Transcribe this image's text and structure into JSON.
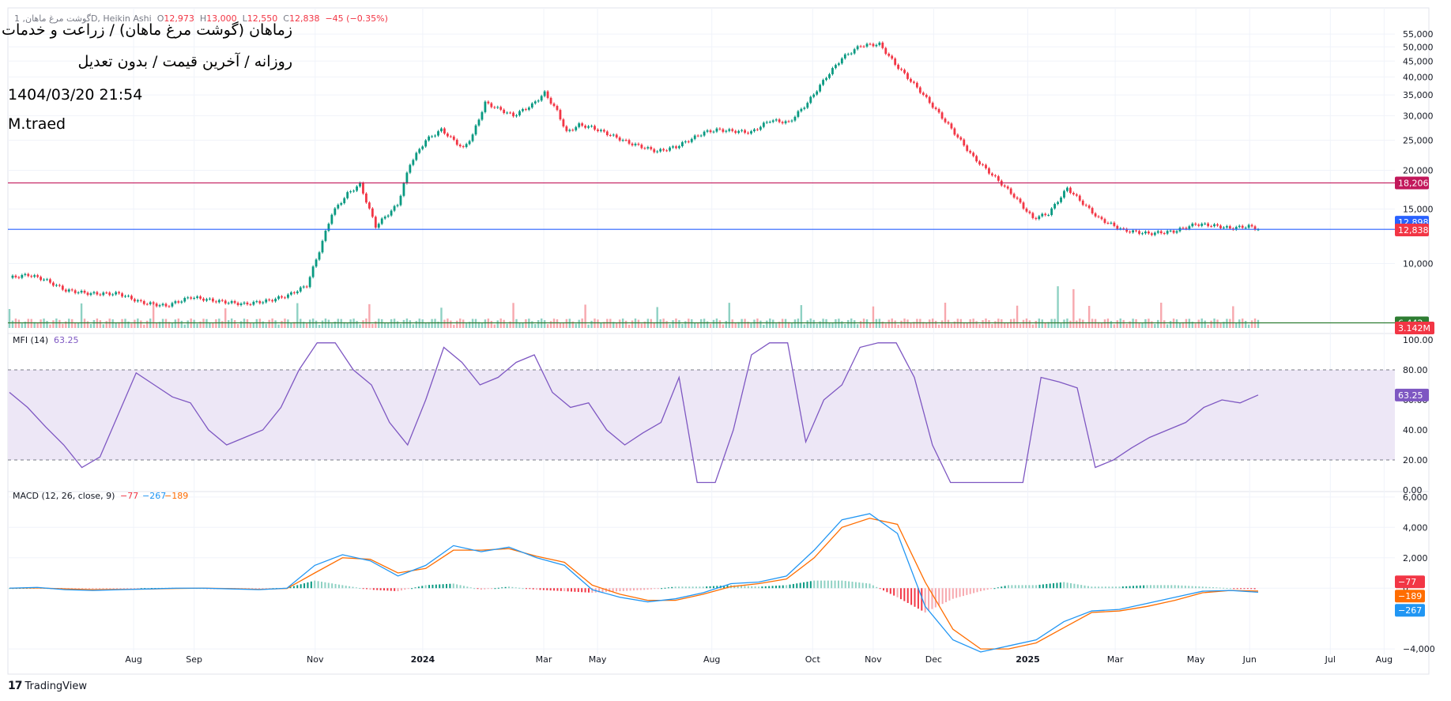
{
  "header": {
    "ohlc_prefix": "گوشت مرغ ماهان, 1D, Heikin Ashi",
    "o_label": "O",
    "o_value": "12,973",
    "h_label": "H",
    "h_value": "13,000",
    "l_label": "L",
    "l_value": "12,550",
    "c_label": "C",
    "c_value": "12,838",
    "change": "−45 (−0.35%)",
    "title": "زماهان (گوشت مرغ ماهان) / زراعت و خدمات وابسته",
    "subtitle": "روزانه / آخرین قیمت / بدون تعدیل",
    "datetime": "1404/03/20 21:54",
    "author": "M.traed"
  },
  "brand": {
    "name": "TradingView",
    "logo": "17"
  },
  "colors": {
    "up": "#089981",
    "down": "#f23645",
    "vol_up": "#8ed1c3",
    "vol_down": "#f7a8ae",
    "line_red": "#c2185b",
    "line_blue": "#2962ff",
    "line_green": "#2e7d32",
    "mfi": "#7e57c2",
    "mfi_band": "#ede7f6",
    "macd": "#2196f3",
    "signal": "#ff6d00"
  },
  "chart_data": [
    {
      "type": "candlestick",
      "pane": "price",
      "style": "Heikin Ashi",
      "y_scale": "log",
      "ylim": [
        6200,
        56000
      ],
      "x_ticks": [
        "Aug",
        "Sep",
        "Nov",
        "2024",
        "Mar",
        "May",
        "Aug",
        "Oct",
        "Nov",
        "Dec",
        "2025",
        "Mar",
        "May",
        "Jun",
        "Jul",
        "Aug"
      ],
      "y_ticks": [
        10000,
        15000,
        20000,
        25000,
        30000,
        35000,
        40000,
        45000,
        50000,
        55000
      ],
      "y_tick_labels": [
        "10,000",
        "15,000",
        "20,000",
        "25,000",
        "30,000",
        "35,000",
        "40,000",
        "45,000",
        "50,000",
        "55,000"
      ],
      "close_path": [
        9000,
        9200,
        8900,
        8200,
        8000,
        8000,
        7500,
        7300,
        7800,
        7600,
        7400,
        7600,
        7900,
        8500,
        11000,
        14500,
        16800,
        18000,
        13200,
        15500,
        21000,
        25000,
        27000,
        23500,
        26000,
        33000,
        30000,
        32500,
        35500,
        31000,
        26500,
        28000,
        27500,
        26000,
        24500,
        23000,
        23800,
        26500,
        27000,
        26500,
        29000,
        28500,
        33000,
        40000,
        46000,
        50500,
        51000,
        44000,
        36000,
        28000,
        22000,
        18500,
        16500,
        14000,
        14500,
        17500,
        16000,
        14000,
        12800,
        12500,
        12700,
        13400,
        13300,
        13000,
        13200,
        12838
      ],
      "close_keys": [
        0,
        6,
        11,
        18,
        26,
        35,
        42,
        50,
        58,
        65,
        75,
        83,
        89,
        95,
        99,
        103,
        108,
        112,
        117,
        124,
        128,
        133,
        138,
        145,
        148,
        152,
        161,
        167,
        171,
        175,
        178,
        182,
        186,
        192,
        198,
        207,
        213,
        222,
        226,
        237,
        243,
        249,
        255,
        261,
        266,
        272,
        278,
        283,
        291,
        300,
        308,
        316,
        321,
        327,
        332,
        338,
        342,
        348,
        356,
        364,
        372,
        379,
        384,
        390,
        396,
        400
      ],
      "volume_label": "3.142M",
      "levels": [
        {
          "value": 18206,
          "label": "18,206",
          "color": "#c2185b"
        },
        {
          "value": 12838,
          "label": "12,838",
          "color": "#f23645"
        },
        {
          "value": 12898,
          "label": "12,898",
          "color": "#2962ff"
        },
        {
          "value": 6442,
          "label": "6,442",
          "color": "#2e7d32"
        }
      ],
      "last_price": 12838,
      "last_price_label": "12,838"
    },
    {
      "type": "line",
      "pane": "MFI",
      "title": "MFI (14)",
      "last_value": 63.25,
      "last_value_label": "63.25",
      "ylim": [
        0,
        100
      ],
      "y_ticks": [
        0,
        20,
        40,
        60,
        80,
        100
      ],
      "y_tick_labels": [
        "0.00",
        "20.00",
        "40.00",
        "60.00",
        "80.00",
        "100.00"
      ],
      "bands": [
        20,
        80
      ],
      "band_labels": [
        "20.00",
        "80.00"
      ],
      "values": [
        65,
        55,
        42,
        30,
        15,
        22,
        50,
        78,
        70,
        62,
        58,
        40,
        30,
        35,
        40,
        55,
        80,
        98,
        98,
        80,
        70,
        45,
        30,
        60,
        95,
        85,
        70,
        75,
        85,
        90,
        65,
        55,
        58,
        40,
        30,
        38,
        45,
        75,
        5,
        5,
        40,
        90,
        98,
        98,
        32,
        60,
        70,
        95,
        98,
        98,
        75,
        30,
        5,
        5,
        5,
        5,
        5,
        75,
        72,
        68,
        15,
        20,
        28,
        35,
        40,
        45,
        55,
        60,
        58,
        63.25
      ]
    },
    {
      "type": "line_histogram",
      "pane": "MACD",
      "title": "MACD (12, 26, close, 9)",
      "params_values": [
        "−77",
        "−267",
        "−189"
      ],
      "ylim": [
        -4200,
        6200
      ],
      "y_ticks": [
        -4000,
        0,
        2000,
        4000,
        6000
      ],
      "y_tick_labels": [
        "−4,000",
        "0",
        "2,000",
        "4,000",
        "6,000"
      ],
      "series": [
        {
          "name": "MACD",
          "color": "#2196f3",
          "last_label": "−267",
          "values": [
            0,
            50,
            -100,
            -150,
            -100,
            -50,
            0,
            0,
            -50,
            -100,
            0,
            1500,
            2200,
            1800,
            800,
            1500,
            2800,
            2400,
            2700,
            2000,
            1500,
            -100,
            -600,
            -900,
            -700,
            -300,
            300,
            400,
            800,
            2500,
            4500,
            4900,
            3600,
            -1200,
            -3400,
            -4200,
            -3800,
            -3400,
            -2200,
            -1500,
            -1400,
            -1000,
            -600,
            -200,
            -150,
            -267
          ]
        },
        {
          "name": "Signal",
          "color": "#ff6d00",
          "last_label": "−189",
          "values": [
            0,
            20,
            -50,
            -100,
            -80,
            -60,
            -20,
            0,
            -30,
            -80,
            -20,
            1000,
            2000,
            1900,
            1000,
            1300,
            2500,
            2500,
            2600,
            2100,
            1700,
            200,
            -400,
            -800,
            -800,
            -400,
            100,
            300,
            600,
            2000,
            4000,
            4600,
            4200,
            400,
            -2700,
            -4000,
            -4000,
            -3600,
            -2600,
            -1600,
            -1500,
            -1200,
            -800,
            -300,
            -150,
            -189
          ]
        },
        {
          "name": "Histogram",
          "last_label": "−77",
          "values": [
            0,
            30,
            -50,
            -50,
            -20,
            10,
            20,
            0,
            -20,
            -20,
            20,
            500,
            200,
            -100,
            -200,
            200,
            300,
            -100,
            100,
            -100,
            -200,
            -300,
            -200,
            -100,
            100,
            100,
            200,
            100,
            200,
            500,
            500,
            300,
            -600,
            -1600,
            -700,
            -200,
            200,
            200,
            400,
            100,
            100,
            200,
            200,
            100,
            0,
            -77
          ]
        }
      ]
    }
  ]
}
